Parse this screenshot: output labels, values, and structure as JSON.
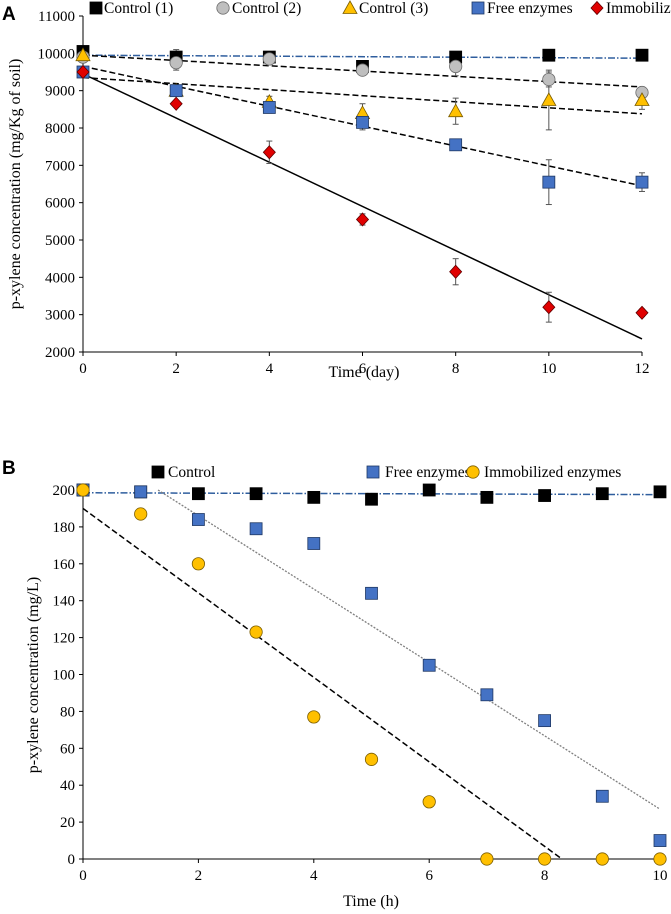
{
  "chart_data": [
    {
      "type": "scatter",
      "panel_label": "A",
      "xlabel": "Time (day)",
      "ylabel": "p-xylene concentration (mg/Kg of soil)",
      "xlim": [
        0,
        12
      ],
      "ylim": [
        2000,
        11000
      ],
      "xticks": [
        0,
        2,
        4,
        6,
        8,
        10,
        12
      ],
      "yticks": [
        2000,
        3000,
        4000,
        5000,
        6000,
        7000,
        8000,
        9000,
        10000,
        11000
      ],
      "legend_position": "top",
      "series": [
        {
          "name": "Control (1)",
          "marker": "square",
          "color": "#000000",
          "stroke": "#000000",
          "x": [
            0,
            2,
            4,
            6,
            8,
            10,
            12
          ],
          "y": [
            10050,
            9900,
            9900,
            9650,
            9900,
            9950,
            9950
          ],
          "err": [
            0,
            200,
            80,
            100,
            80,
            0,
            0
          ],
          "trend": {
            "x": [
              0,
              12
            ],
            "y": [
              9950,
              9870
            ],
            "style": "dashdot",
            "color": "#2f5e9e"
          }
        },
        {
          "name": "Control (2)",
          "marker": "circle",
          "color": "#bfbfbf",
          "stroke": "#6b6b6b",
          "x": [
            0,
            2,
            4,
            6,
            8,
            10,
            12
          ],
          "y": [
            9900,
            9750,
            9850,
            9550,
            9650,
            9300,
            8950
          ],
          "err": [
            0,
            200,
            150,
            100,
            250,
            200,
            150
          ],
          "trend": {
            "x": [
              0,
              12
            ],
            "y": [
              9950,
              9100
            ],
            "style": "dashed",
            "color": "#000000"
          }
        },
        {
          "name": "Control (3)",
          "marker": "triangle",
          "color": "#ffc000",
          "stroke": "#7a5c00",
          "x": [
            0,
            2,
            4,
            6,
            8,
            10,
            12
          ],
          "y": [
            9950,
            9000,
            8700,
            8400,
            8450,
            8750,
            8750
          ],
          "err": [
            0,
            150,
            150,
            250,
            350,
            800,
            250
          ],
          "trend": {
            "x": [
              0,
              12
            ],
            "y": [
              9350,
              8380
            ],
            "style": "dashed",
            "color": "#000000"
          }
        },
        {
          "name": "Free enzymes",
          "marker": "square",
          "color": "#4472c4",
          "stroke": "#1f3864",
          "x": [
            0,
            2,
            4,
            6,
            8,
            10,
            12
          ],
          "y": [
            9500,
            9000,
            8550,
            8150,
            7550,
            6550,
            6550
          ],
          "err": [
            0,
            150,
            150,
            200,
            100,
            600,
            250
          ],
          "trend": {
            "x": [
              0,
              12
            ],
            "y": [
              9650,
              6450
            ],
            "style": "dashed",
            "color": "#000000"
          }
        },
        {
          "name": "Immobilized enzymes",
          "marker": "diamond",
          "color": "#e00000",
          "stroke": "#600000",
          "x": [
            0,
            2,
            4,
            6,
            8,
            10,
            12
          ],
          "y": [
            9500,
            8650,
            7350,
            5550,
            4150,
            3200,
            3050
          ],
          "err": [
            0,
            0,
            300,
            150,
            350,
            400,
            100
          ],
          "trend": {
            "x": [
              0,
              12
            ],
            "y": [
              9450,
              2350
            ],
            "style": "solid",
            "color": "#000000"
          }
        }
      ]
    },
    {
      "type": "scatter",
      "panel_label": "B",
      "xlabel": "Time (h)",
      "ylabel": "p-xylene concentration (mg/L)",
      "xlim": [
        0,
        10
      ],
      "ylim": [
        0,
        200
      ],
      "xticks": [
        0,
        2,
        4,
        6,
        8,
        10
      ],
      "yticks": [
        0,
        20,
        40,
        60,
        80,
        100,
        120,
        140,
        160,
        180,
        200
      ],
      "legend_position": "top",
      "series": [
        {
          "name": "Control",
          "marker": "square",
          "color": "#000000",
          "stroke": "#000000",
          "x": [
            0,
            1,
            2,
            3,
            4,
            5,
            6,
            7,
            8,
            9,
            10
          ],
          "y": [
            200,
            199,
            198,
            198,
            196,
            195,
            200,
            196,
            197,
            198,
            199
          ],
          "trend": {
            "x": [
              0,
              10
            ],
            "y": [
              198.5,
              197.5
            ],
            "style": "dashdot",
            "color": "#2f5e9e"
          }
        },
        {
          "name": "Free enzymes",
          "marker": "square",
          "color": "#4472c4",
          "stroke": "#1f3864",
          "x": [
            0,
            1,
            2,
            3,
            4,
            5,
            6,
            7,
            8,
            9,
            10
          ],
          "y": [
            200,
            199,
            184,
            179,
            171,
            144,
            105,
            89,
            75,
            34,
            10
          ],
          "trend": {
            "x": [
              1.3,
              10
            ],
            "y": [
              200,
              27
            ],
            "style": "dotted",
            "color": "#7f7f7f"
          }
        },
        {
          "name": "Immobilized enzymes",
          "marker": "circle",
          "color": "#ffc000",
          "stroke": "#7a5c00",
          "x": [
            0,
            1,
            2,
            3,
            4,
            5,
            6,
            7,
            8,
            9,
            10
          ],
          "y": [
            200,
            187,
            160,
            123,
            77,
            54,
            31,
            0,
            0,
            0,
            0
          ],
          "trend": {
            "x": [
              0,
              8.3
            ],
            "y": [
              190,
              0
            ],
            "style": "dashed",
            "color": "#000000"
          }
        }
      ]
    }
  ]
}
